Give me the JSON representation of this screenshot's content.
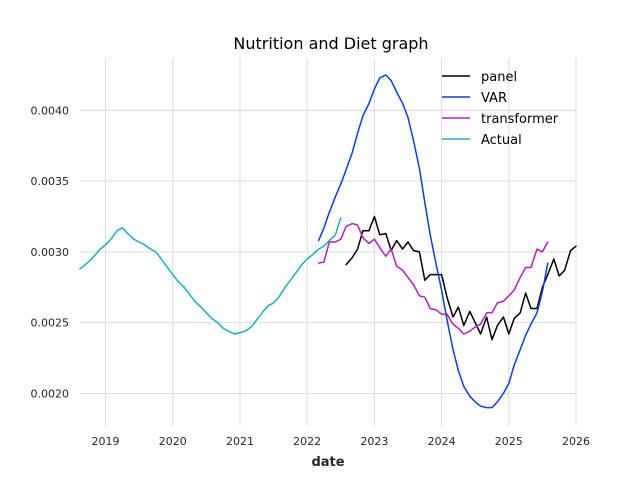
{
  "chart_data": {
    "type": "line",
    "title": "Nutrition and Diet graph",
    "xlabel": "date",
    "ylabel": "",
    "xlim": [
      2018.62,
      2026.0
    ],
    "ylim": [
      0.00177,
      0.00437
    ],
    "x_ticks": [
      2019,
      2020,
      2021,
      2022,
      2023,
      2024,
      2025,
      2026
    ],
    "x_tick_labels": [
      "2019",
      "2020",
      "2021",
      "2022",
      "2023",
      "2024",
      "2025",
      "2026"
    ],
    "y_ticks": [
      0.002,
      0.0025,
      0.003,
      0.0035,
      0.004
    ],
    "y_tick_labels": [
      "0.0020",
      "0.0025",
      "0.0030",
      "0.0035",
      "0.0040"
    ],
    "grid": true,
    "legend_position": "top-right",
    "series": [
      {
        "name": "panel",
        "color": "#000000",
        "x": [
          2022.58,
          2022.67,
          2022.75,
          2022.83,
          2022.92,
          2023.0,
          2023.08,
          2023.17,
          2023.25,
          2023.33,
          2023.42,
          2023.5,
          2023.58,
          2023.67,
          2023.75,
          2023.83,
          2023.92,
          2024.0,
          2024.08,
          2024.17,
          2024.25,
          2024.33,
          2024.42,
          2024.5,
          2024.58,
          2024.67,
          2024.75,
          2024.83,
          2024.92,
          2025.0,
          2025.08,
          2025.17,
          2025.25,
          2025.33,
          2025.42,
          2025.5,
          2025.58,
          2025.67,
          2025.75,
          2025.83,
          2025.92,
          2026.0
        ],
        "y": [
          0.00291,
          0.00296,
          0.00302,
          0.00315,
          0.00315,
          0.00325,
          0.00312,
          0.00313,
          0.00301,
          0.00308,
          0.00302,
          0.00307,
          0.00301,
          0.003,
          0.0028,
          0.00284,
          0.00284,
          0.00284,
          0.00268,
          0.00254,
          0.00261,
          0.00248,
          0.00258,
          0.0025,
          0.00242,
          0.00254,
          0.00238,
          0.00248,
          0.00254,
          0.00242,
          0.00253,
          0.00257,
          0.00271,
          0.0026,
          0.0026,
          0.00275,
          0.00284,
          0.00295,
          0.00283,
          0.00287,
          0.00301,
          0.00304
        ]
      },
      {
        "name": "VAR",
        "color": "#0b3fe0",
        "x": [
          2022.17,
          2022.25,
          2022.33,
          2022.42,
          2022.5,
          2022.58,
          2022.67,
          2022.75,
          2022.83,
          2022.92,
          2023.0,
          2023.08,
          2023.17,
          2023.25,
          2023.33,
          2023.42,
          2023.5,
          2023.58,
          2023.67,
          2023.75,
          2023.83,
          2023.92,
          2024.0,
          2024.08,
          2024.17,
          2024.25,
          2024.33,
          2024.42,
          2024.5,
          2024.58,
          2024.67,
          2024.75,
          2024.83,
          2024.92,
          2025.0,
          2025.08,
          2025.17,
          2025.25,
          2025.33,
          2025.42,
          2025.5,
          2025.58
        ],
        "y": [
          0.00308,
          0.00317,
          0.00328,
          0.00339,
          0.00348,
          0.00358,
          0.0037,
          0.00384,
          0.00396,
          0.00405,
          0.00415,
          0.00423,
          0.00425,
          0.00421,
          0.00413,
          0.00405,
          0.00395,
          0.00379,
          0.00359,
          0.00335,
          0.00312,
          0.00291,
          0.00273,
          0.00252,
          0.00231,
          0.00216,
          0.00205,
          0.00198,
          0.00194,
          0.00191,
          0.0019,
          0.0019,
          0.00194,
          0.002,
          0.00207,
          0.0022,
          0.00231,
          0.00241,
          0.00249,
          0.00257,
          0.00272,
          0.00292
        ]
      },
      {
        "name": "transformer",
        "color": "#b020c0",
        "x": [
          2022.17,
          2022.25,
          2022.33,
          2022.42,
          2022.5,
          2022.58,
          2022.67,
          2022.75,
          2022.83,
          2022.92,
          2023.0,
          2023.08,
          2023.17,
          2023.25,
          2023.33,
          2023.42,
          2023.5,
          2023.58,
          2023.67,
          2023.75,
          2023.83,
          2023.92,
          2024.0,
          2024.08,
          2024.17,
          2024.25,
          2024.33,
          2024.42,
          2024.5,
          2024.58,
          2024.67,
          2024.75,
          2024.83,
          2024.92,
          2025.0,
          2025.08,
          2025.17,
          2025.25,
          2025.33,
          2025.42,
          2025.5,
          2025.58
        ],
        "y": [
          0.00292,
          0.00293,
          0.00307,
          0.00307,
          0.00309,
          0.00318,
          0.0032,
          0.00319,
          0.0031,
          0.00306,
          0.00309,
          0.00303,
          0.00297,
          0.00302,
          0.0029,
          0.00287,
          0.00282,
          0.00277,
          0.00269,
          0.00268,
          0.0026,
          0.00259,
          0.00256,
          0.00256,
          0.00249,
          0.00246,
          0.00242,
          0.00244,
          0.00247,
          0.00249,
          0.00257,
          0.00257,
          0.00264,
          0.00265,
          0.00269,
          0.00273,
          0.00282,
          0.00289,
          0.00289,
          0.00302,
          0.003,
          0.00307
        ]
      },
      {
        "name": "Actual",
        "color": "#17b1c0",
        "x": [
          2018.62,
          2018.75,
          2018.83,
          2018.92,
          2019.0,
          2019.08,
          2019.17,
          2019.25,
          2019.33,
          2019.42,
          2019.5,
          2019.58,
          2019.67,
          2019.75,
          2019.83,
          2019.92,
          2020.0,
          2020.08,
          2020.17,
          2020.25,
          2020.33,
          2020.42,
          2020.5,
          2020.58,
          2020.67,
          2020.75,
          2020.83,
          2020.92,
          2021.0,
          2021.08,
          2021.17,
          2021.25,
          2021.33,
          2021.42,
          2021.5,
          2021.58,
          2021.67,
          2021.75,
          2021.83,
          2021.92,
          2022.0,
          2022.08,
          2022.17,
          2022.25,
          2022.33,
          2022.42,
          2022.5
        ],
        "y": [
          0.00288,
          0.00293,
          0.00297,
          0.00302,
          0.00305,
          0.00309,
          0.00315,
          0.00317,
          0.00313,
          0.00309,
          0.00307,
          0.00305,
          0.00302,
          0.003,
          0.00295,
          0.00289,
          0.00284,
          0.00279,
          0.00275,
          0.0027,
          0.00265,
          0.00261,
          0.00257,
          0.00253,
          0.0025,
          0.00246,
          0.00244,
          0.00242,
          0.00243,
          0.00244,
          0.00247,
          0.00252,
          0.00257,
          0.00262,
          0.00264,
          0.00268,
          0.00275,
          0.0028,
          0.00285,
          0.00291,
          0.00295,
          0.00298,
          0.00302,
          0.00304,
          0.00308,
          0.00312,
          0.00324
        ]
      }
    ]
  }
}
